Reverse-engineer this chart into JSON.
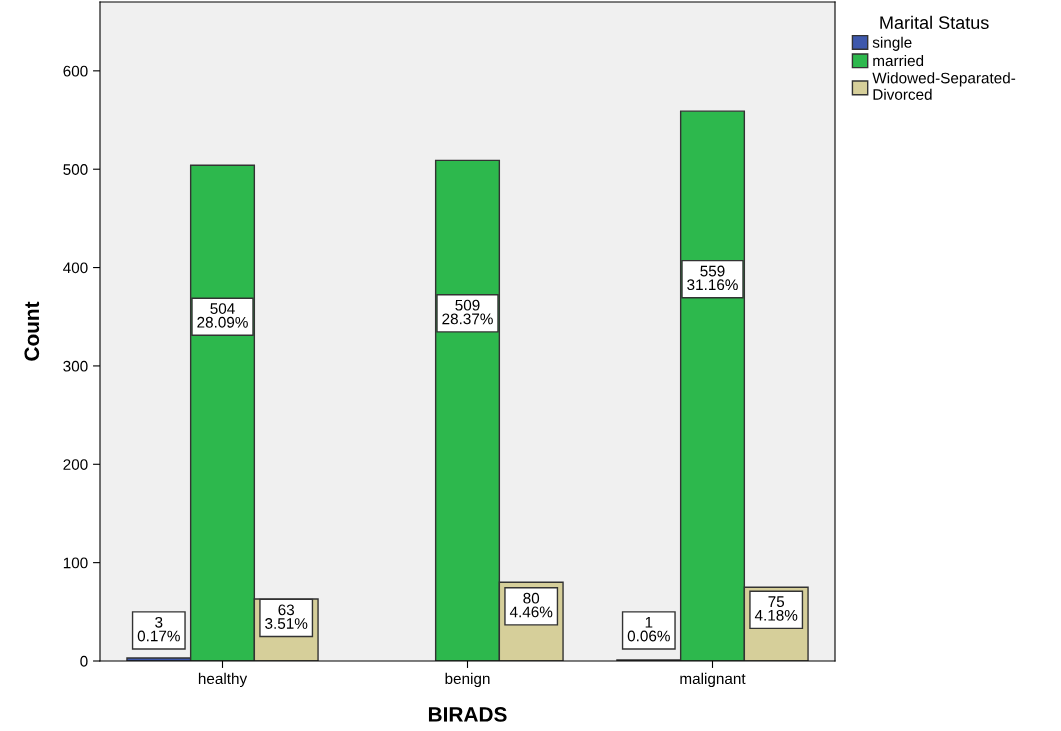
{
  "chart_data": {
    "type": "bar",
    "xlabel": "BIRADS",
    "ylabel": "Count",
    "legend_title": "Marital Status",
    "legend": "top right",
    "grid": false,
    "categories": [
      "healthy",
      "benign",
      "malignant"
    ],
    "ylim": [
      0,
      670
    ],
    "yticks": [
      0,
      100,
      200,
      300,
      400,
      500,
      600
    ],
    "series": [
      {
        "name": "single",
        "color": "#3e58ac",
        "values": [
          3,
          null,
          1
        ],
        "value_labels": [
          "3\n0.17%",
          null,
          "1\n0.06%"
        ]
      },
      {
        "name": "married",
        "color": "#2db84d",
        "values": [
          504,
          509,
          559
        ],
        "value_labels": [
          "504\n28.09%",
          "509\n28.37%",
          "559\n31.16%"
        ]
      },
      {
        "name": "Widowed-Separated-\nDivorced",
        "color": "#d6cf9a",
        "values": [
          63,
          80,
          75
        ],
        "value_labels": [
          "63\n3.51%",
          "80\n4.46%",
          "75\n4.18%"
        ]
      }
    ]
  }
}
